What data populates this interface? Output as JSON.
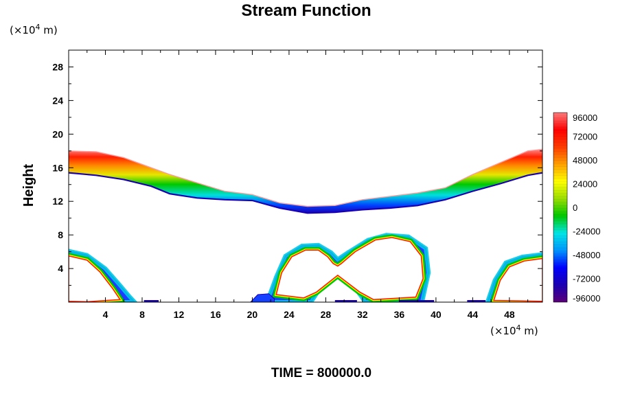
{
  "chart_data": {
    "type": "heatmap",
    "title": "Stream Function",
    "ylabel": "Height",
    "y_unit_prefix": "(×10",
    "y_unit_exp": "4",
    "y_unit_suffix": " m)",
    "x_unit_prefix": "(×10",
    "x_unit_exp": "4",
    "x_unit_suffix": " m)",
    "xlim": [
      0,
      51.6
    ],
    "ylim": [
      0,
      30
    ],
    "x_ticks": [
      "4",
      "8",
      "12",
      "16",
      "20",
      "24",
      "28",
      "32",
      "36",
      "40",
      "44",
      "48"
    ],
    "x_tick_values": [
      4,
      8,
      12,
      16,
      20,
      24,
      28,
      32,
      36,
      40,
      44,
      48
    ],
    "y_ticks": [
      "4",
      "8",
      "12",
      "16",
      "20",
      "24",
      "28"
    ],
    "y_tick_values": [
      4,
      8,
      12,
      16,
      20,
      24,
      28
    ],
    "colorbar": {
      "range": [
        -96000,
        96000
      ],
      "tick_labels": [
        "96000",
        "72000",
        "48000",
        "24000",
        "0",
        "-24000",
        "-48000",
        "-72000",
        "-96000"
      ],
      "tick_values": [
        96000,
        72000,
        48000,
        24000,
        0,
        -24000,
        -48000,
        -72000,
        -96000
      ],
      "stops": [
        "#5b0078",
        "#1a00b4",
        "#0000ff",
        "#0096ff",
        "#00e6e6",
        "#00c800",
        "#9ade00",
        "#ffff00",
        "#ffa000",
        "#ff3c00",
        "#ff0000",
        "#ff7c7c"
      ]
    },
    "bands": {
      "upper_top": [
        [
          0,
          18.0
        ],
        [
          3,
          17.9
        ],
        [
          6,
          17.2
        ],
        [
          9,
          16.0
        ],
        [
          11,
          15.2
        ],
        [
          14,
          14.2
        ],
        [
          17,
          13.2
        ],
        [
          20,
          12.8
        ],
        [
          23,
          11.8
        ],
        [
          26,
          11.4
        ],
        [
          29,
          11.5
        ],
        [
          32,
          12.2
        ],
        [
          35,
          12.6
        ],
        [
          38,
          13.0
        ],
        [
          41,
          13.6
        ],
        [
          44,
          15.2
        ],
        [
          47,
          16.6
        ],
        [
          50,
          18.0
        ],
        [
          51.6,
          18.2
        ]
      ],
      "upper_bottom": [
        [
          0,
          15.4
        ],
        [
          3,
          15.1
        ],
        [
          6,
          14.6
        ],
        [
          9,
          13.8
        ],
        [
          11,
          12.9
        ],
        [
          14,
          12.4
        ],
        [
          17,
          12.2
        ],
        [
          20,
          12.1
        ],
        [
          23,
          11.2
        ],
        [
          26,
          10.6
        ],
        [
          29,
          10.7
        ],
        [
          32,
          11.0
        ],
        [
          35,
          11.2
        ],
        [
          38,
          11.5
        ],
        [
          41,
          12.2
        ],
        [
          44,
          13.2
        ],
        [
          47,
          14.1
        ],
        [
          50,
          15.1
        ],
        [
          51.6,
          15.4
        ]
      ],
      "lower_cells": [
        {
          "outer": [
            [
              0,
              0
            ],
            [
              0,
              6.1
            ],
            [
              2,
              5.6
            ],
            [
              4,
              4.0
            ],
            [
              5.6,
              2.0
            ],
            [
              6.6,
              0.7
            ],
            [
              7.2,
              0
            ]
          ],
          "inner": [
            [
              0,
              0.1
            ],
            [
              0,
              5.5
            ],
            [
              2,
              5.0
            ],
            [
              3.4,
              3.6
            ],
            [
              4.8,
              1.6
            ],
            [
              5.6,
              0.3
            ],
            [
              2,
              0.05
            ]
          ]
        },
        {
          "outer": [
            [
              21.6,
              0
            ],
            [
              22.6,
              3.0
            ],
            [
              23.6,
              5.5
            ],
            [
              25.4,
              6.7
            ],
            [
              27.2,
              6.8
            ],
            [
              28.6,
              5.9
            ],
            [
              29.3,
              5.1
            ],
            [
              30.4,
              5.9
            ],
            [
              32.6,
              7.4
            ],
            [
              34.6,
              8.0
            ],
            [
              37.0,
              7.8
            ],
            [
              38.9,
              6.4
            ],
            [
              39.2,
              3.5
            ],
            [
              38.5,
              0
            ],
            [
              32.3,
              0
            ],
            [
              31.0,
              2.0
            ],
            [
              29.3,
              3.7
            ],
            [
              27.6,
              2.0
            ],
            [
              26.4,
              0
            ]
          ],
          "inner": [
            [
              22.6,
              0.9
            ],
            [
              23.2,
              3.5
            ],
            [
              24.3,
              5.4
            ],
            [
              25.8,
              6.2
            ],
            [
              27.2,
              6.2
            ],
            [
              28.2,
              5.4
            ],
            [
              28.8,
              4.6
            ],
            [
              29.3,
              4.3
            ],
            [
              29.7,
              4.6
            ],
            [
              31.2,
              6.0
            ],
            [
              33.4,
              7.4
            ],
            [
              35.2,
              7.7
            ],
            [
              37.2,
              7.2
            ],
            [
              38.4,
              5.5
            ],
            [
              38.6,
              2.8
            ],
            [
              37.8,
              0.6
            ],
            [
              33.2,
              0.3
            ],
            [
              31.7,
              1.2
            ],
            [
              29.3,
              3.2
            ],
            [
              27.0,
              1.2
            ],
            [
              25.6,
              0.5
            ]
          ]
        },
        {
          "outer": [
            [
              45.6,
              0
            ],
            [
              46.4,
              2.6
            ],
            [
              47.6,
              4.7
            ],
            [
              49.4,
              5.4
            ],
            [
              51.6,
              5.7
            ],
            [
              51.6,
              0
            ]
          ],
          "inner": [
            [
              46.3,
              0.2
            ],
            [
              47.0,
              2.6
            ],
            [
              48.0,
              4.2
            ],
            [
              49.6,
              4.9
            ],
            [
              51.6,
              5.2
            ],
            [
              51.6,
              0.1
            ]
          ]
        }
      ],
      "small_patch": [
        [
          19.8,
          0
        ],
        [
          20.6,
          0.9
        ],
        [
          21.8,
          1.0
        ],
        [
          22.4,
          0.4
        ],
        [
          22.4,
          0
        ]
      ],
      "floor_specks": [
        [
          8.2,
          9.8
        ],
        [
          29.0,
          31.4
        ],
        [
          36.0,
          39.8
        ],
        [
          43.4,
          45.4
        ]
      ]
    }
  },
  "footer": {
    "time_text": "TIME = 800000.0"
  }
}
